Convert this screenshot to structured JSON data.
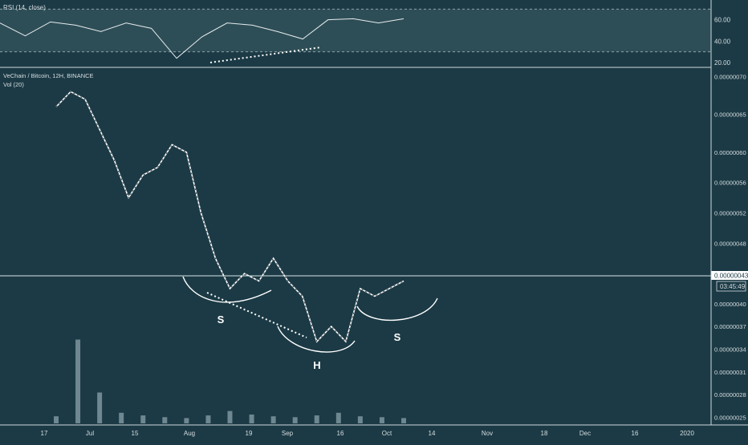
{
  "colors": {
    "background": "#1b3a45",
    "rsi_band": "#2e4e57",
    "text": "#d7dde0",
    "line": "#e6ecee",
    "price_tag_bg": "#ffffff",
    "price_tag_text": "#1b3a45"
  },
  "rsi_panel": {
    "label": "RSI (14, close)",
    "ticks": [
      "60.00",
      "40.00",
      "20.00"
    ],
    "tick_values": [
      60,
      40,
      20
    ],
    "band": [
      30,
      70
    ],
    "ylim": [
      17,
      77
    ]
  },
  "price_panel": {
    "symbol_label": "VeChain / Bitcoin, 12H, BINANCE",
    "volume_label": "Vol (20)",
    "ticks": [
      "0.00000070",
      "0.00000065",
      "0.00000060",
      "0.00000056",
      "0.00000052",
      "0.00000048",
      "0.00000044",
      "0.00000040",
      "0.00000037",
      "0.00000034",
      "0.00000031",
      "0.00000028",
      "0.00000025"
    ],
    "current_price": "0.00000043",
    "countdown": "03:45:49"
  },
  "x_axis": {
    "ticks": [
      "17",
      "Jul",
      "15",
      "Aug",
      "19",
      "Sep",
      "16",
      "Oct",
      "14",
      "Nov",
      "18",
      "Dec",
      "16",
      "2020"
    ]
  },
  "annotations": {
    "left_shoulder": "S",
    "head": "H",
    "right_shoulder": "S"
  },
  "chart_data": [
    {
      "type": "line",
      "title": "RSI (14, close)",
      "x": [
        "Jun 17",
        "Jun 24",
        "Jul 1",
        "Jul 8",
        "Jul 15",
        "Jul 22",
        "Jul 29",
        "Aug 5",
        "Aug 12",
        "Aug 19",
        "Aug 26",
        "Sep 2",
        "Sep 9",
        "Sep 16",
        "Sep 23",
        "Sep 30",
        "Oct 6"
      ],
      "series": [
        {
          "values": [
            57,
            45,
            58,
            55,
            49,
            57,
            52,
            24,
            44,
            57,
            55,
            49,
            42,
            60,
            61,
            57,
            61
          ]
        }
      ],
      "ylim": [
        17,
        77
      ],
      "guides": [
        30,
        70
      ]
    },
    {
      "type": "line",
      "title": "VeChain / Bitcoin, 12H, BINANCE",
      "x": [
        "Jun 21",
        "Jun 24",
        "Jun 28",
        "Jul 3",
        "Jul 8",
        "Jul 12",
        "Jul 17",
        "Jul 22",
        "Jul 27",
        "Jul 31",
        "Aug 4",
        "Aug 7",
        "Aug 11",
        "Aug 16",
        "Aug 21",
        "Aug 25",
        "Aug 30",
        "Sep 3",
        "Sep 8",
        "Sep 12",
        "Sep 16",
        "Sep 20",
        "Sep 25",
        "Sep 30",
        "Oct 6"
      ],
      "series": [
        {
          "values": [
            6.6e-07,
            6.8e-07,
            6.7e-07,
            6.3e-07,
            5.9e-07,
            5.4e-07,
            5.7e-07,
            5.8e-07,
            6.1e-07,
            6e-07,
            5.2e-07,
            4.6e-07,
            4.2e-07,
            4.4e-07,
            4.3e-07,
            4.6e-07,
            4.3e-07,
            4.1e-07,
            3.5e-07,
            3.7e-07,
            3.5e-07,
            4.2e-07,
            4.1e-07,
            4.2e-07,
            4.3e-07
          ]
        }
      ],
      "ylim": [
        2.4e-07,
        7.1e-07
      ],
      "annotations": [
        "S",
        "H",
        "S"
      ]
    },
    {
      "type": "bar",
      "title": "Vol (20)",
      "categories": [
        "Jun 17",
        "Jun 24",
        "Jul 1",
        "Jul 8",
        "Jul 15",
        "Jul 22",
        "Jul 29",
        "Aug 5",
        "Aug 12",
        "Aug 19",
        "Aug 26",
        "Sep 2",
        "Sep 9",
        "Sep 16",
        "Sep 23",
        "Sep 30",
        "Oct 6"
      ],
      "values": [
        8,
        95,
        35,
        12,
        9,
        7,
        6,
        9,
        14,
        10,
        8,
        7,
        9,
        12,
        8,
        7,
        6
      ]
    }
  ]
}
